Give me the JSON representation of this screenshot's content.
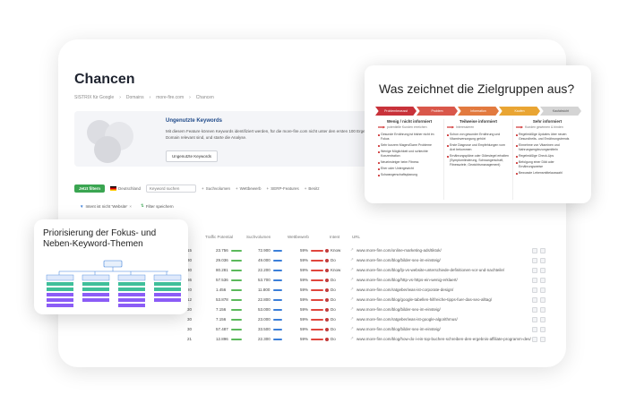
{
  "main": {
    "title": "Chancen",
    "breadcrumb": [
      "SISTRIX für Google",
      "Domains",
      "more-fire.com",
      "Chancen"
    ],
    "banner": {
      "title": "Ungenutzte Keywords",
      "text": "Mit diesem Feature können Keywords identifiziert werden, für die more-fire.com nicht unter den ersten 100 Ergebnissen rankt, die aber für die Domain relevant sind, und starte die Analyse.",
      "button": "Ungenutzte Keywords"
    },
    "filterbar": {
      "filter_button": "Jetzt filtern",
      "country": "Deutschland",
      "search_placeholder": "Keyword suchen",
      "items": [
        "Suchvolumen",
        "Wettbewerb",
        "SERP-Features",
        "Besitz"
      ]
    },
    "filterbar2": {
      "active_filter": "Intent ist nicht 'Website'",
      "save_filter": "Filter speichern"
    },
    "table": {
      "headers": [
        "Traffic Potential",
        "Suchvolumen",
        "Wettbewerb",
        "Intent",
        "URL"
      ],
      "rows": [
        {
          "traffic": "23.756",
          "volume": "72.900",
          "comp": "59%",
          "intent": "Know",
          "url": "www.more-fire.com/online-marketing-ads/tiktok/"
        },
        {
          "traffic": "29.036",
          "volume": "49.000",
          "comp": "59%",
          "intent": "Do",
          "url": "www.more-fire.com/blog/bilder-seo-im-einsteig/"
        },
        {
          "traffic": "80.281",
          "volume": "22.200",
          "comp": "59%",
          "intent": "Know",
          "url": "www.more-fire.com/blog/lp-vs-website-unterschiede-definitionen-vor-und-nachteile/"
        },
        {
          "traffic": "57.536",
          "volume": "53.700",
          "comp": "59%",
          "intent": "Do",
          "url": "www.more-fire.com/blog/http-vs-https-ein-wenig-erklaert/"
        },
        {
          "traffic": "1.456",
          "volume": "11.800",
          "comp": "59%",
          "intent": "Do",
          "url": "www.more-fire.com/ratgeber/was-ist-corporate-design/"
        },
        {
          "traffic": "53.878",
          "volume": "22.800",
          "comp": "59%",
          "intent": "Do",
          "url": "www.more-fire.com/blog/google-tabellen-hilfreiche-tipps-fuer-das-seo-alltag/"
        },
        {
          "traffic": "7.156",
          "volume": "53.000",
          "comp": "59%",
          "intent": "Do",
          "url": "www.more-fire.com/blog/bilder-seo-im-einsteig/"
        },
        {
          "traffic": "7.156",
          "volume": "23.000",
          "comp": "59%",
          "intent": "Do",
          "url": "www.more-fire.com/ratgeber/was-ist-google-algorithmus/"
        },
        {
          "traffic": "57.487",
          "volume": "33.500",
          "comp": "59%",
          "intent": "Do",
          "url": "www.more-fire.com/blog/bilder-seo-im-einsteig/"
        },
        {
          "traffic": "12.896",
          "volume": "22.300",
          "comp": "59%",
          "intent": "Do",
          "url": "www.more-fire.com/blog/how-do-i-ein-top-buchen-schreiben-den-ergebnis-affiliate-programm-des/"
        }
      ],
      "left_numbers": [
        "15",
        "30",
        "30",
        "86",
        "20",
        "12",
        "30",
        "30",
        "30",
        "21"
      ]
    }
  },
  "right": {
    "title": "Was zeichnet die Zielgruppen aus?",
    "stages": [
      "Problembewusst",
      "Problem",
      "Information",
      "Kaufen",
      "Kaufabsicht"
    ],
    "columns": [
      {
        "title": "Wenig / nicht informiert",
        "sub": "potentielle Kunden erreichen",
        "items": [
          "Gesunde Ernährung ist bisher nicht im Fokus",
          "Sehr kurzem Magen/Darm Probleme",
          "Wenige Möglichkeit und schlechte Konzentration",
          "Neueinsteiger beim Fitness",
          "Eher oder Untergewicht",
          "Schwangerschaftsplanung"
        ]
      },
      {
        "title": "Teilweise informiert",
        "sub": "Interessieren",
        "items": [
          "Schon von gesunder Ernährung und Vitaminversorgung gehört",
          "Erste Diagnose und Empfehlungen vom Arzt bekommen",
          "Ernährungspläne oder Gütesiegel erhalten (Symptomlinderung, Schwangerschaft, Fitnessziele, Gewichtsmanagement)"
        ]
      },
      {
        "title": "Sehr informiert",
        "sub": "Kunden gewinnen & binden",
        "items": [
          "Regelmäßige Updates über neuen Gesundheits- und Ernährungstrends",
          "Einnehme von Vitaminen und Nahrungsergänzungsmitteln",
          "Regelmäßige Check-Ups",
          "Befolgung einer Diät oder Ernährungsweise",
          "Bewusste Lebensmittelauswahl"
        ]
      }
    ]
  },
  "left": {
    "title": "Priorisierung der Fokus- und Neben-Keyword-Themen"
  },
  "colors": {
    "green": "#3aa551",
    "blue": "#3b7fd9",
    "red": "#e0463d",
    "purple": "#8b5cf6",
    "teal": "#3fbf9a"
  }
}
